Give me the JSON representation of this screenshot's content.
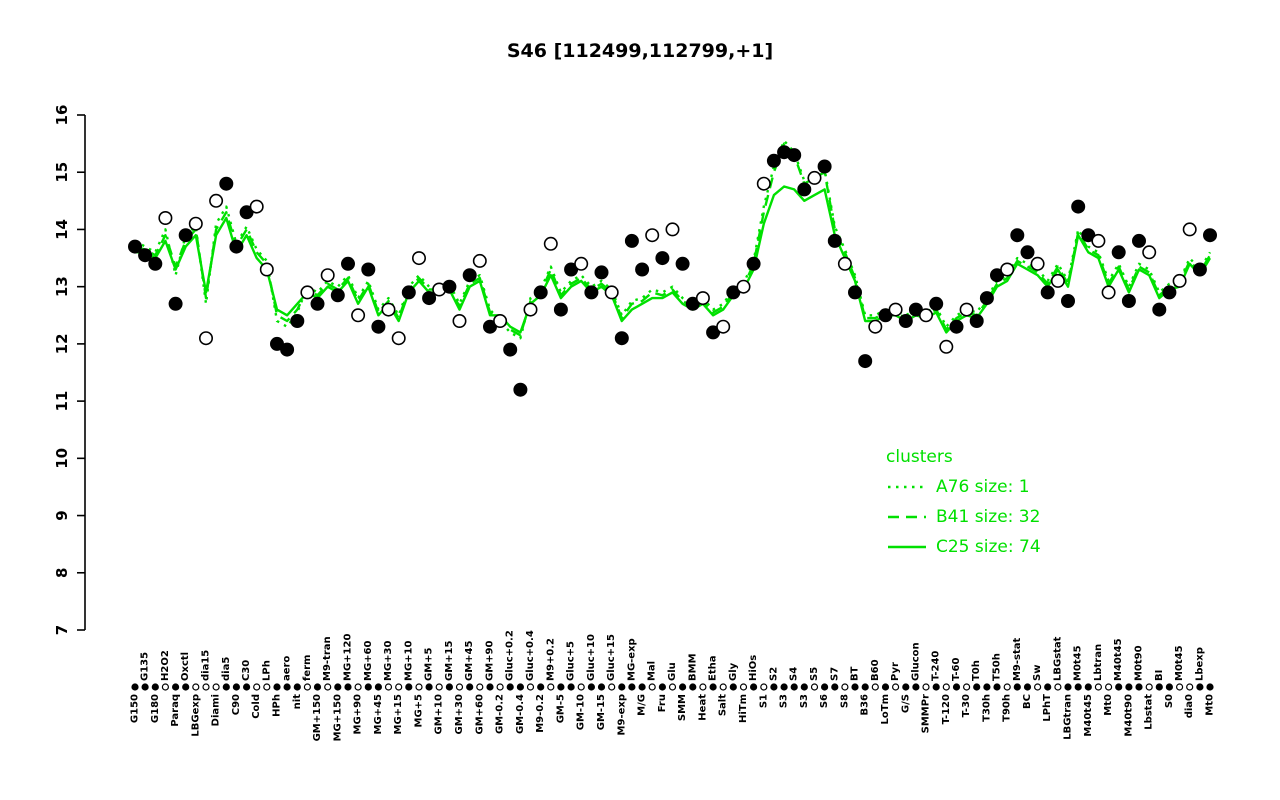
{
  "title": "S46 [112499,112799,+1]",
  "colors": {
    "cluster": "#00E000",
    "point_fill": "#000000",
    "point_open": "#FFFFFF",
    "axis": "#000000"
  },
  "legend": {
    "title": "clusters",
    "entries": [
      {
        "label": "A76 size: 1",
        "style": "dotted"
      },
      {
        "label": "B41 size: 32",
        "style": "dashed"
      },
      {
        "label": "C25 size: 74",
        "style": "solid"
      }
    ]
  },
  "chart_data": {
    "type": "line",
    "title": "S46 [112499,112799,+1]",
    "xlabel": "",
    "ylabel": "",
    "ylim": [
      7,
      16
    ],
    "yticks": [
      7,
      8,
      9,
      10,
      11,
      12,
      13,
      14,
      15,
      16
    ],
    "grid": false,
    "legend_position": "right-middle",
    "categories": [
      "G150",
      "G135",
      "G180",
      "H2O2",
      "Paraq",
      "Oxctl",
      "LBGexp",
      "dia15",
      "Diami",
      "dia5",
      "C90",
      "C30",
      "Cold",
      "LPh",
      "HPh",
      "aero",
      "nit",
      "ferm",
      "GM+150",
      "M9-tran",
      "MG+150",
      "MG+120",
      "MG+90",
      "MG+60",
      "MG+45",
      "MG+30",
      "MG+15",
      "MG+10",
      "MG+5",
      "GM+5",
      "GM+10",
      "GM+15",
      "GM+30",
      "GM+45",
      "GM+60",
      "GM+90",
      "GM-0.2",
      "Gluc+0.2",
      "GM-0.4",
      "Gluc+0.4",
      "M9-0.2",
      "M9+0.2",
      "GM-5",
      "Gluc+5",
      "GM-10",
      "Gluc+10",
      "GM-15",
      "Gluc+15",
      "M9-exp",
      "MG-exp",
      "M/G",
      "Mal",
      "Fru",
      "Glu",
      "SMM",
      "BMM",
      "Heat",
      "Etha",
      "Salt",
      "Gly",
      "HiTm",
      "HiOs",
      "S1",
      "S2",
      "S3",
      "S4",
      "S3",
      "S5",
      "S6",
      "S7",
      "S8",
      "BT",
      "B36",
      "B60",
      "LoTm",
      "Pyr",
      "G/S",
      "Glucon",
      "SMMPr",
      "T-240",
      "T-120",
      "T-60",
      "T-30",
      "T0h",
      "T30h",
      "T50h",
      "T90h",
      "M9-stat",
      "BC",
      "Sw",
      "LPhT",
      "LBGstat",
      "LBGtran",
      "M0t45",
      "M40t45",
      "Lbtran",
      "Mt0",
      "M40t45",
      "M40t90",
      "M0t90",
      "Lbstat",
      "BI",
      "S0",
      "M0t45",
      "dia0",
      "Lbexp",
      "Mt0"
    ],
    "points": {
      "values": [
        13.7,
        13.55,
        13.4,
        14.2,
        12.7,
        13.9,
        14.1,
        12.1,
        14.5,
        14.8,
        13.7,
        14.3,
        14.4,
        13.3,
        12.0,
        11.9,
        12.4,
        12.9,
        12.7,
        13.2,
        12.85,
        13.4,
        12.5,
        13.3,
        12.3,
        12.6,
        12.1,
        12.9,
        13.5,
        12.8,
        12.95,
        13.0,
        12.4,
        13.2,
        13.45,
        12.3,
        12.4,
        11.9,
        11.2,
        12.6,
        12.9,
        13.75,
        12.6,
        13.3,
        13.4,
        12.9,
        13.25,
        12.9,
        12.1,
        13.8,
        13.3,
        13.9,
        13.5,
        14.0,
        13.4,
        12.7,
        12.8,
        12.2,
        12.3,
        12.9,
        13.0,
        13.4,
        14.8,
        15.2,
        15.35,
        15.3,
        14.7,
        14.9,
        15.1,
        13.8,
        13.4,
        12.9,
        11.7,
        12.3,
        12.5,
        12.6,
        12.4,
        12.6,
        12.5,
        12.7,
        11.95,
        12.3,
        12.6,
        12.4,
        12.8,
        13.2,
        13.3,
        13.9,
        13.6,
        13.4,
        12.9,
        13.1,
        12.75,
        14.4,
        13.9,
        13.8,
        12.9,
        13.6,
        12.75,
        13.8,
        13.6,
        12.6,
        12.9,
        13.1,
        14.0,
        13.3,
        13.9
      ],
      "filled": [
        1,
        1,
        1,
        0,
        1,
        1,
        0,
        0,
        0,
        1,
        1,
        1,
        0,
        0,
        1,
        1,
        1,
        0,
        1,
        0,
        1,
        1,
        0,
        1,
        1,
        0,
        0,
        1,
        0,
        1,
        0,
        1,
        0,
        1,
        0,
        1,
        0,
        1,
        1,
        0,
        1,
        0,
        1,
        1,
        0,
        1,
        1,
        0,
        1,
        1,
        1,
        0,
        1,
        0,
        1,
        1,
        0,
        1,
        0,
        1,
        0,
        1,
        0,
        1,
        1,
        1,
        1,
        0,
        1,
        1,
        0,
        1,
        1,
        0,
        1,
        0,
        1,
        1,
        0,
        1,
        0,
        1,
        0,
        1,
        1,
        1,
        0,
        1,
        1,
        0,
        1,
        0,
        1,
        1,
        1,
        0,
        0,
        1,
        1,
        1,
        0,
        1,
        1,
        0,
        0,
        1,
        1
      ]
    },
    "series": [
      {
        "name": "A76",
        "size": 1,
        "style": "dotted",
        "values": [
          13.8,
          13.7,
          13.6,
          14.0,
          13.2,
          13.9,
          14.05,
          12.7,
          14.1,
          14.4,
          13.75,
          14.05,
          13.65,
          13.45,
          12.4,
          12.3,
          12.55,
          13.0,
          12.9,
          13.1,
          13.0,
          13.2,
          12.8,
          13.1,
          12.6,
          12.8,
          12.5,
          13.0,
          13.2,
          13.0,
          13.0,
          13.05,
          12.7,
          13.1,
          13.2,
          12.6,
          12.4,
          12.2,
          12.1,
          12.8,
          12.95,
          13.35,
          12.9,
          13.1,
          13.2,
          13.0,
          13.1,
          12.95,
          12.5,
          12.75,
          12.8,
          12.95,
          12.9,
          13.0,
          12.8,
          12.7,
          12.8,
          12.6,
          12.7,
          12.95,
          13.05,
          13.45,
          14.4,
          15.1,
          15.55,
          15.35,
          14.85,
          14.95,
          15.05,
          14.05,
          13.65,
          13.2,
          12.5,
          12.5,
          12.6,
          12.6,
          12.5,
          12.6,
          12.55,
          12.65,
          12.3,
          12.5,
          12.6,
          12.55,
          12.8,
          13.1,
          13.2,
          13.5,
          13.4,
          13.3,
          13.1,
          13.4,
          13.1,
          14.0,
          13.7,
          13.6,
          13.1,
          13.4,
          13.0,
          13.4,
          13.3,
          12.9,
          13.05,
          13.1,
          13.5,
          13.3,
          13.6
        ]
      },
      {
        "name": "B41",
        "size": 32,
        "style": "dashed",
        "values": [
          13.7,
          13.65,
          13.55,
          13.9,
          13.35,
          13.8,
          14.0,
          12.8,
          14.0,
          14.3,
          13.7,
          14.0,
          13.6,
          13.4,
          12.5,
          12.4,
          12.6,
          12.95,
          12.85,
          13.05,
          12.95,
          13.15,
          12.75,
          13.05,
          12.55,
          12.75,
          12.45,
          12.95,
          13.15,
          12.95,
          12.95,
          13.0,
          12.65,
          13.05,
          13.15,
          12.55,
          12.45,
          12.25,
          12.15,
          12.75,
          12.9,
          13.3,
          12.85,
          13.05,
          13.15,
          12.95,
          13.05,
          12.9,
          12.45,
          12.7,
          12.75,
          12.9,
          12.85,
          12.95,
          12.75,
          12.65,
          12.75,
          12.55,
          12.65,
          12.9,
          13.0,
          13.4,
          14.3,
          15.0,
          15.5,
          15.3,
          14.8,
          14.9,
          15.0,
          14.0,
          13.6,
          13.15,
          12.45,
          12.45,
          12.55,
          12.55,
          12.45,
          12.55,
          12.5,
          12.6,
          12.25,
          12.45,
          12.55,
          12.5,
          12.75,
          13.05,
          13.15,
          13.45,
          13.35,
          13.25,
          13.05,
          13.35,
          13.05,
          13.95,
          13.65,
          13.55,
          13.05,
          13.35,
          12.95,
          13.35,
          13.25,
          12.85,
          13.0,
          13.05,
          13.45,
          13.25,
          13.55
        ]
      },
      {
        "name": "C25",
        "size": 74,
        "style": "solid",
        "values": [
          13.6,
          13.6,
          13.5,
          13.8,
          13.3,
          13.7,
          13.9,
          12.9,
          13.9,
          14.2,
          13.6,
          13.9,
          13.5,
          13.3,
          12.6,
          12.5,
          12.7,
          12.9,
          12.8,
          13.0,
          12.9,
          13.1,
          12.7,
          13.0,
          12.5,
          12.7,
          12.4,
          12.9,
          13.1,
          12.9,
          12.9,
          12.95,
          12.6,
          13.0,
          13.1,
          12.5,
          12.5,
          12.3,
          12.2,
          12.7,
          12.85,
          13.2,
          12.8,
          13.0,
          13.1,
          12.9,
          13.0,
          12.85,
          12.4,
          12.6,
          12.7,
          12.8,
          12.8,
          12.9,
          12.7,
          12.6,
          12.7,
          12.5,
          12.6,
          12.85,
          12.95,
          13.3,
          14.1,
          14.6,
          14.75,
          14.7,
          14.5,
          14.6,
          14.7,
          13.9,
          13.5,
          13.1,
          12.4,
          12.4,
          12.5,
          12.5,
          12.4,
          12.5,
          12.45,
          12.55,
          12.2,
          12.4,
          12.5,
          12.45,
          12.7,
          13.0,
          13.1,
          13.4,
          13.3,
          13.2,
          13.0,
          13.3,
          13.0,
          13.9,
          13.6,
          13.5,
          13.0,
          13.3,
          12.9,
          13.3,
          13.2,
          12.8,
          12.95,
          13.0,
          13.4,
          13.2,
          13.5
        ]
      }
    ]
  }
}
